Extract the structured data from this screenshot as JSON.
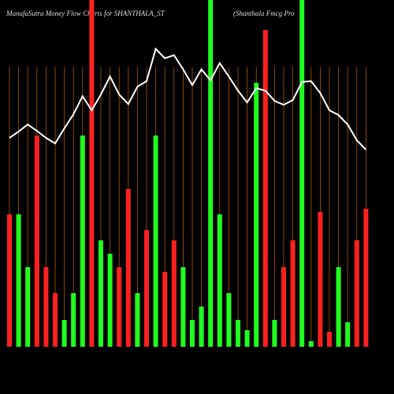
{
  "chart_data": {
    "type": "bar",
    "title": "MunafaSutra  Money Flow  Charts for SHANTHALA_ST",
    "subtitle": "(Shanthala  Fmcg Pro",
    "categories": [
      null,
      null,
      null,
      null,
      null,
      null,
      null,
      null,
      null,
      null,
      null,
      null,
      null,
      null,
      null,
      null,
      null,
      null,
      null,
      null,
      null,
      null,
      null,
      null,
      null,
      null,
      null,
      null,
      null,
      null,
      null,
      null,
      null,
      null,
      null,
      null,
      null,
      null,
      null,
      null
    ],
    "series": [
      {
        "type": "bar",
        "values": [
          168,
          168,
          101,
          268,
          101,
          68,
          34,
          68,
          268,
          440,
          135,
          118,
          101,
          200,
          68,
          148,
          268,
          95,
          135,
          101,
          34,
          51,
          440,
          168,
          68,
          34,
          21,
          335,
          402,
          34,
          101,
          135,
          440,
          7,
          171,
          19,
          101,
          31,
          135,
          175
        ],
        "colors": [
          "#ff2020",
          "#20ff20",
          "#20ff20",
          "#ff2020",
          "#ff2020",
          "#ff2020",
          "#20ff20",
          "#20ff20",
          "#20ff20",
          "#ff2020",
          "#20ff20",
          "#20ff20",
          "#ff2020",
          "#ff2020",
          "#20ff20",
          "#ff2020",
          "#20ff20",
          "#ff2020",
          "#ff2020",
          "#20ff20",
          "#20ff20",
          "#20ff20",
          "#20ff20",
          "#20ff20",
          "#20ff20",
          "#20ff20",
          "#20ff20",
          "#20ff20",
          "#ff2020",
          "#20ff20",
          "#ff2020",
          "#ff2020",
          "#20ff20",
          "#20ff20",
          "#ff2020",
          "#ff2020",
          "#20ff20",
          "#20ff20",
          "#ff2020",
          "#ff2020"
        ]
      },
      {
        "type": "line",
        "color": "#ffffff",
        "values": [
          265,
          273,
          282,
          274,
          265,
          258,
          277,
          295,
          318,
          300,
          320,
          343,
          320,
          308,
          330,
          337,
          378,
          366,
          370,
          352,
          332,
          352,
          338,
          360,
          343,
          325,
          310,
          328,
          325,
          312,
          307,
          313,
          336,
          337,
          322,
          300,
          294,
          282,
          262,
          250
        ]
      }
    ],
    "ylim": [
      0,
      440
    ],
    "grid": true,
    "grid_color": "#a85a10"
  }
}
